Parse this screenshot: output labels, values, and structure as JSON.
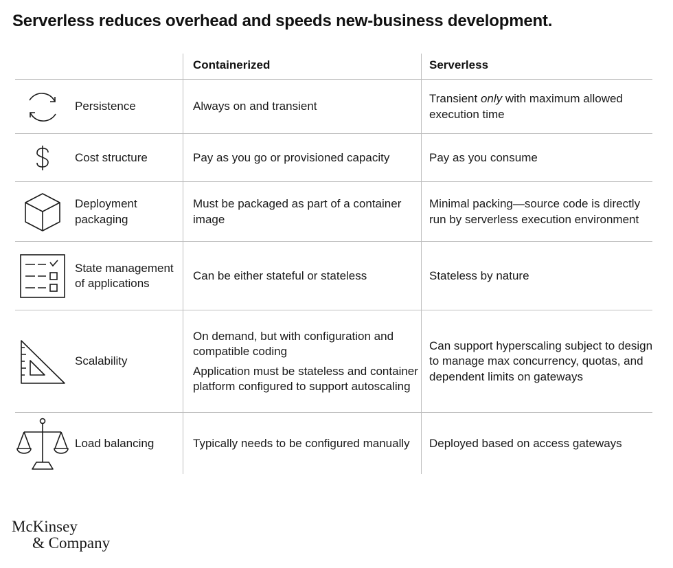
{
  "title": "Serverless reduces overhead and speeds new-business development.",
  "columns": {
    "containerized": "Containerized",
    "serverless": "Serverless"
  },
  "rows": [
    {
      "icon": "cycle-arrows-icon",
      "label": "Persistence",
      "containerized": [
        "Always on and transient"
      ],
      "serverless_pre": "Transient ",
      "serverless_em": "only",
      "serverless_post": " with maximum allowed execution time"
    },
    {
      "icon": "dollar-icon",
      "label": "Cost structure",
      "containerized": [
        "Pay as you go or provisioned capacity"
      ],
      "serverless": "Pay as you consume"
    },
    {
      "icon": "cube-icon",
      "label": "Deployment packaging",
      "containerized": [
        "Must be packaged as part of a container image"
      ],
      "serverless": "Minimal packing—source code is directly run by serverless execution environment"
    },
    {
      "icon": "checklist-icon",
      "label": "State management of applications",
      "containerized": [
        "Can be either stateful or stateless"
      ],
      "serverless": "Stateless by nature"
    },
    {
      "icon": "set-square-icon",
      "label": "Scalability",
      "containerized": [
        "On demand, but with configuration and compatible coding",
        "Application must be stateless and container platform configured to support autoscaling"
      ],
      "serverless": "Can support hyperscaling subject to design to manage max concurrency, quotas, and dependent limits on gateways"
    },
    {
      "icon": "balance-scale-icon",
      "label": "Load balancing",
      "containerized": [
        "Typically needs to be configured manually"
      ],
      "serverless": "Deployed based on access gateways"
    }
  ],
  "logo": {
    "line1": "McKinsey",
    "line2": "& Company"
  }
}
